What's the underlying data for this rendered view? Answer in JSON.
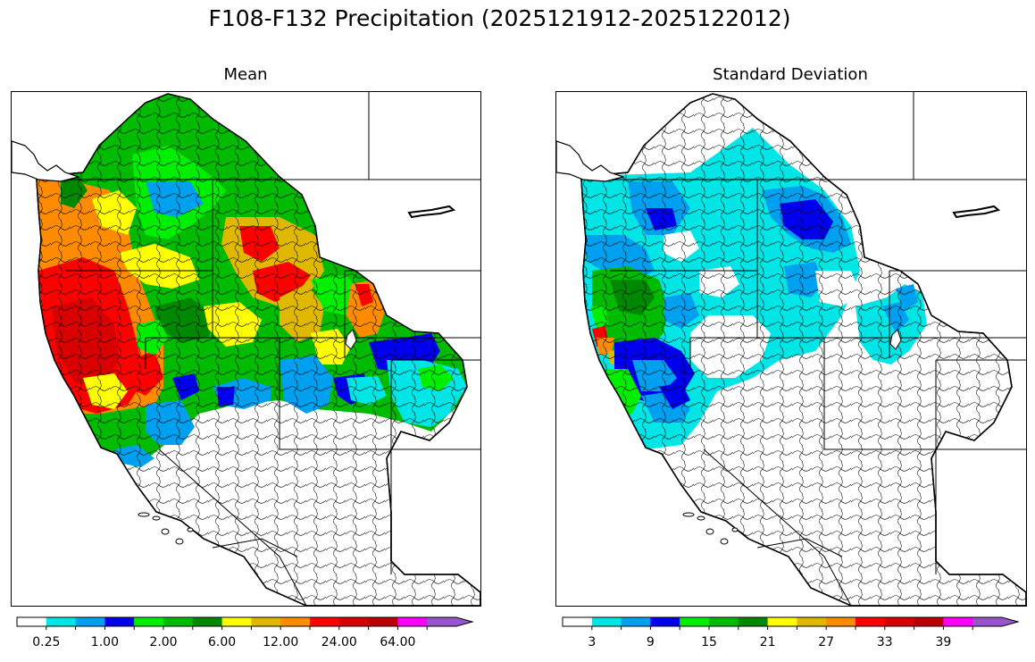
{
  "figure": {
    "title": "F108-F132 Precipitation (2025121912-2025122012)"
  },
  "panels": [
    {
      "title": "Mean",
      "colorbar": {
        "colors": [
          "#ffffff",
          "#00e5e5",
          "#00a0f0",
          "#0000ee",
          "#00ee00",
          "#00bb00",
          "#008800",
          "#ffff00",
          "#e0b800",
          "#ff8c00",
          "#ff0000",
          "#d80000",
          "#bb0000",
          "#ff00ff",
          "#9955cc"
        ],
        "tick_labels": [
          "0.25",
          "1.00",
          "2.00",
          "6.00",
          "12.00",
          "24.00",
          "64.00"
        ],
        "tick_label_bins": [
          1,
          3,
          5,
          7,
          9,
          11,
          13
        ]
      }
    },
    {
      "title": "Standard Deviation",
      "colorbar": {
        "colors": [
          "#ffffff",
          "#00e5e5",
          "#00a0f0",
          "#0000ee",
          "#00ee00",
          "#00bb00",
          "#008800",
          "#ffff00",
          "#e0b800",
          "#ff8c00",
          "#ff0000",
          "#d80000",
          "#bb0000",
          "#ff00ff",
          "#9955cc"
        ],
        "tick_labels": [
          "3",
          "9",
          "15",
          "21",
          "27",
          "33",
          "39"
        ],
        "tick_label_bins": [
          1,
          3,
          5,
          7,
          9,
          11,
          13
        ]
      }
    }
  ]
}
